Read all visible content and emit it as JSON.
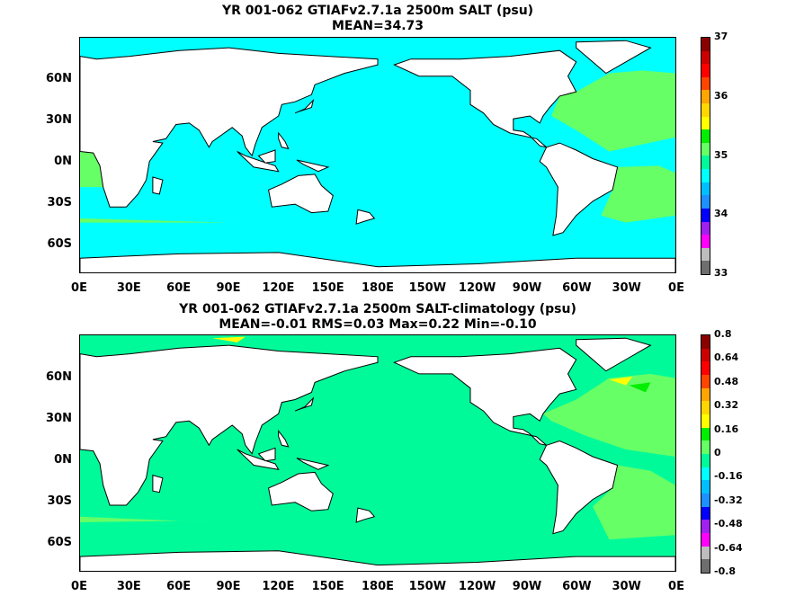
{
  "panel_top": {
    "title": "YR 001-062 GTIAFv2.7.1a 2500m SALT (psu)",
    "subtitle": "MEAN=34.73",
    "colorbar_labels": [
      "37",
      "36",
      "35",
      "34",
      "33"
    ],
    "colors": [
      "#6e6e6e",
      "#bdbdbd",
      "#ff00ff",
      "#a020f0",
      "#0000ff",
      "#1e90ff",
      "#00bfff",
      "#00ffff",
      "#00fa9a",
      "#66ff66",
      "#00ee00",
      "#ffff00",
      "#ffd700",
      "#ffa500",
      "#ff4500",
      "#ff0000",
      "#cc0000",
      "#8b0000"
    ],
    "ocean_color": "#00ffff",
    "warm_color": "#66ff66"
  },
  "panel_bottom": {
    "title": "YR 001-062 GTIAFv2.7.1a 2500m SALT-climatology (psu)",
    "subtitle": "MEAN=-0.01   RMS=0.03   Max=0.22   Min=-0.10",
    "colorbar_labels": [
      "0.8",
      "0.64",
      "0.48",
      "0.32",
      "0.16",
      "0",
      "-0.16",
      "-0.32",
      "-0.48",
      "-0.64",
      "-0.8"
    ],
    "colors": [
      "#6e6e6e",
      "#bdbdbd",
      "#ff00ff",
      "#a020f0",
      "#0000ff",
      "#1e90ff",
      "#00bfff",
      "#00ffff",
      "#00fa9a",
      "#66ff66",
      "#00ee00",
      "#ffff00",
      "#ffd700",
      "#ffa500",
      "#ff4500",
      "#ff0000",
      "#cc0000",
      "#8b0000"
    ],
    "ocean_color": "#00fa9a",
    "warm_color": "#66ff66"
  },
  "lat_labels": [
    "60N",
    "30N",
    "0N",
    "30S",
    "60S"
  ],
  "lon_labels": [
    "0E",
    "30E",
    "60E",
    "90E",
    "120E",
    "150E",
    "180E",
    "150W",
    "120W",
    "90W",
    "60W",
    "30W",
    "0E"
  ]
}
